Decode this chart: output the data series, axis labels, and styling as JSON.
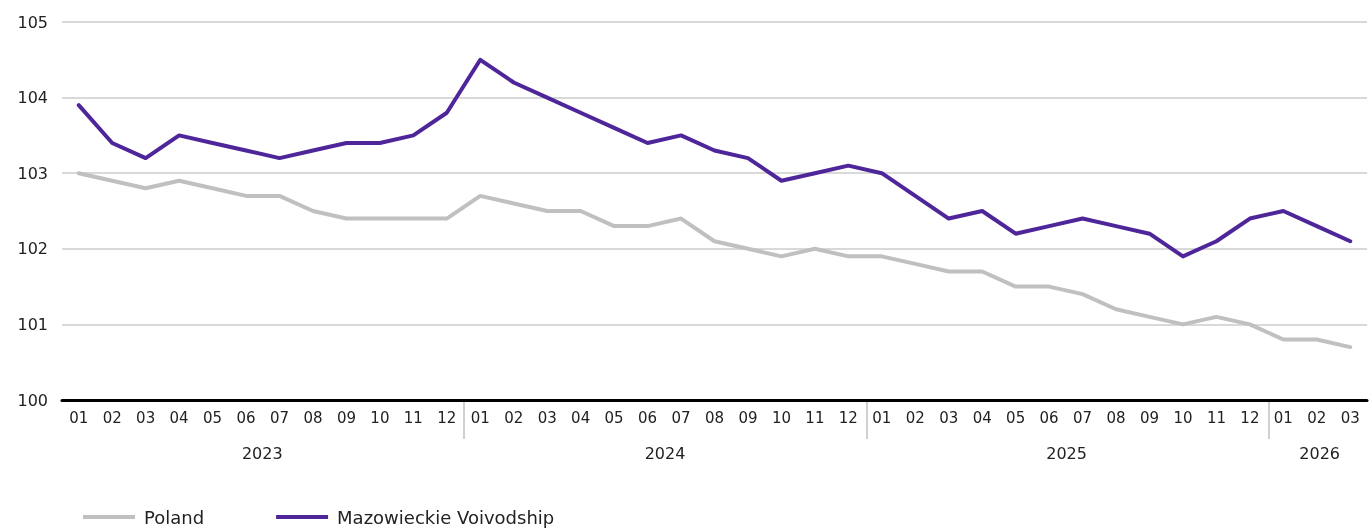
{
  "chart_data": {
    "type": "line",
    "categories": [
      "01",
      "02",
      "03",
      "04",
      "05",
      "06",
      "07",
      "08",
      "09",
      "10",
      "11",
      "12",
      "01",
      "02",
      "03",
      "04",
      "05",
      "06",
      "07",
      "08",
      "09",
      "10",
      "11",
      "12",
      "01",
      "02",
      "03",
      "04",
      "05",
      "06",
      "07",
      "08",
      "09",
      "10",
      "11",
      "12",
      "01",
      "02",
      "03"
    ],
    "series": [
      {
        "name": "Poland",
        "color": "#c0c0c0",
        "values": [
          103.0,
          102.9,
          102.8,
          102.9,
          102.8,
          102.7,
          102.7,
          102.5,
          102.4,
          102.4,
          102.4,
          102.4,
          102.7,
          102.6,
          102.5,
          102.5,
          102.3,
          102.3,
          102.4,
          102.1,
          102.0,
          101.9,
          102.0,
          101.9,
          101.9,
          101.8,
          101.7,
          101.7,
          101.5,
          101.5,
          101.4,
          101.2,
          101.1,
          101.0,
          101.1,
          101.0,
          100.8,
          100.8,
          100.7
        ]
      },
      {
        "name": "Mazowieckie Voivodship",
        "color": "#4f2699",
        "values": [
          103.9,
          103.4,
          103.2,
          103.5,
          103.4,
          103.3,
          103.2,
          103.3,
          103.4,
          103.4,
          103.5,
          103.8,
          104.5,
          104.2,
          104.0,
          103.8,
          103.6,
          103.4,
          103.5,
          103.3,
          103.2,
          102.9,
          103.0,
          103.1,
          103.0,
          102.7,
          102.4,
          102.5,
          102.2,
          102.3,
          102.4,
          102.3,
          102.2,
          101.9,
          102.1,
          102.4,
          102.5,
          102.3,
          102.1
        ]
      }
    ],
    "x2lim": [
      "2022-12-16",
      "2026-03-16"
    ],
    "x2ticks": [
      {
        "value": "2023-06-16",
        "label": "2023"
      },
      {
        "value": "2024-06-16",
        "label": "2024"
      },
      {
        "value": "2025-06-16",
        "label": "2025"
      },
      {
        "value": "2026-02-01",
        "label": "2026"
      }
    ],
    "ylim": [
      100,
      105
    ],
    "yticks": [
      100,
      101,
      102,
      103,
      104,
      105
    ],
    "grid": "y",
    "legend": "bottom left",
    "marker": "none",
    "line_style": "solid"
  }
}
